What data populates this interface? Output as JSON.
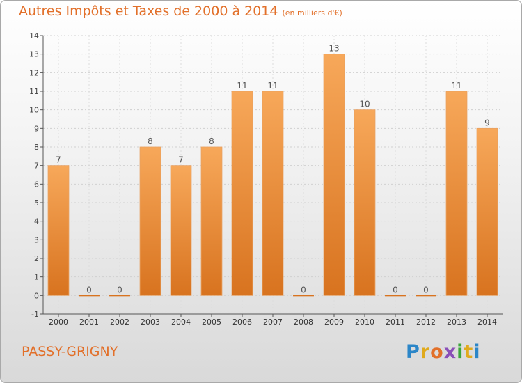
{
  "chart_data": {
    "type": "bar",
    "title": "Autres Impôts et Taxes de 2000 à 2014",
    "subtitle": "(en milliers d'€)",
    "categories": [
      "2000",
      "2001",
      "2002",
      "2003",
      "2004",
      "2005",
      "2006",
      "2007",
      "2008",
      "2009",
      "2010",
      "2011",
      "2012",
      "2013",
      "2014"
    ],
    "values": [
      7,
      0,
      0,
      8,
      7,
      8,
      11,
      11,
      0,
      13,
      10,
      0,
      0,
      11,
      9
    ],
    "ylim": [
      -1,
      14
    ],
    "yticks": [
      "-1",
      "0",
      "1",
      "2",
      "3",
      "4",
      "5",
      "6",
      "7",
      "8",
      "9",
      "10",
      "11",
      "12",
      "13",
      "14"
    ],
    "grid": true,
    "bar_color_top": "#f7a85a",
    "bar_color_bottom": "#d8731f"
  },
  "commune": "PASSY-GRIGNY",
  "brand": {
    "name": "Proxiti",
    "letters": [
      "P",
      "r",
      "o",
      "x",
      "i",
      "t",
      "i"
    ]
  }
}
